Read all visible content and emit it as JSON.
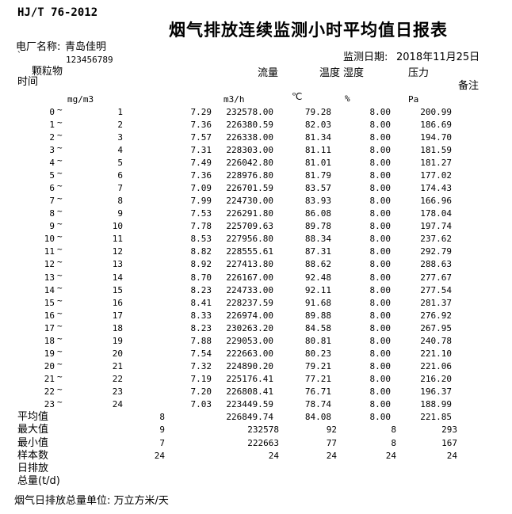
{
  "header": {
    "standard": "HJ/T 76-2012",
    "title": "烟气排放连续监测小时平均值日报表",
    "plant_label": "电厂名称:",
    "plant_name": "青岛佳明",
    "stray_mark": "`",
    "serial": "123456789",
    "date_label": "监测日期:",
    "date_value": "2018年11月25日"
  },
  "columns": {
    "time": "时间",
    "dust": "颗粒物",
    "flow": "流量",
    "temp": "温度",
    "humidity": "湿度",
    "pressure": "压力",
    "remark": "备注"
  },
  "units": {
    "dust": "mg/m3",
    "flow": "m3/h",
    "temp": "℃",
    "humidity": "%",
    "pressure": "Pa"
  },
  "tilde": "~",
  "rows": [
    {
      "start": "0",
      "end": "1",
      "dust": "7.29",
      "flow": "232578.00",
      "temp": "79.28",
      "humidity": "8.00",
      "pressure": "200.99"
    },
    {
      "start": "1",
      "end": "2",
      "dust": "7.36",
      "flow": "226380.59",
      "temp": "82.03",
      "humidity": "8.00",
      "pressure": "186.69"
    },
    {
      "start": "2",
      "end": "3",
      "dust": "7.57",
      "flow": "226338.00",
      "temp": "81.34",
      "humidity": "8.00",
      "pressure": "194.70"
    },
    {
      "start": "3",
      "end": "4",
      "dust": "7.31",
      "flow": "228303.00",
      "temp": "81.11",
      "humidity": "8.00",
      "pressure": "181.59"
    },
    {
      "start": "4",
      "end": "5",
      "dust": "7.49",
      "flow": "226042.80",
      "temp": "81.01",
      "humidity": "8.00",
      "pressure": "181.27"
    },
    {
      "start": "5",
      "end": "6",
      "dust": "7.36",
      "flow": "228976.80",
      "temp": "81.79",
      "humidity": "8.00",
      "pressure": "177.02"
    },
    {
      "start": "6",
      "end": "7",
      "dust": "7.09",
      "flow": "226701.59",
      "temp": "83.57",
      "humidity": "8.00",
      "pressure": "174.43"
    },
    {
      "start": "7",
      "end": "8",
      "dust": "7.99",
      "flow": "224730.00",
      "temp": "83.93",
      "humidity": "8.00",
      "pressure": "166.96"
    },
    {
      "start": "8",
      "end": "9",
      "dust": "7.53",
      "flow": "226291.80",
      "temp": "86.08",
      "humidity": "8.00",
      "pressure": "178.04"
    },
    {
      "start": "9",
      "end": "10",
      "dust": "7.78",
      "flow": "225709.63",
      "temp": "89.78",
      "humidity": "8.00",
      "pressure": "197.74"
    },
    {
      "start": "10",
      "end": "11",
      "dust": "8.53",
      "flow": "227956.80",
      "temp": "88.34",
      "humidity": "8.00",
      "pressure": "237.62"
    },
    {
      "start": "11",
      "end": "12",
      "dust": "8.82",
      "flow": "228555.61",
      "temp": "87.31",
      "humidity": "8.00",
      "pressure": "292.79"
    },
    {
      "start": "12",
      "end": "13",
      "dust": "8.92",
      "flow": "227413.80",
      "temp": "88.62",
      "humidity": "8.00",
      "pressure": "288.63"
    },
    {
      "start": "13",
      "end": "14",
      "dust": "8.70",
      "flow": "226167.00",
      "temp": "92.48",
      "humidity": "8.00",
      "pressure": "277.67"
    },
    {
      "start": "14",
      "end": "15",
      "dust": "8.23",
      "flow": "224733.00",
      "temp": "92.11",
      "humidity": "8.00",
      "pressure": "277.54"
    },
    {
      "start": "15",
      "end": "16",
      "dust": "8.41",
      "flow": "228237.59",
      "temp": "91.68",
      "humidity": "8.00",
      "pressure": "281.37"
    },
    {
      "start": "16",
      "end": "17",
      "dust": "8.33",
      "flow": "226974.00",
      "temp": "89.88",
      "humidity": "8.00",
      "pressure": "276.92"
    },
    {
      "start": "17",
      "end": "18",
      "dust": "8.23",
      "flow": "230263.20",
      "temp": "84.58",
      "humidity": "8.00",
      "pressure": "267.95"
    },
    {
      "start": "18",
      "end": "19",
      "dust": "7.88",
      "flow": "229053.00",
      "temp": "80.81",
      "humidity": "8.00",
      "pressure": "240.78"
    },
    {
      "start": "19",
      "end": "20",
      "dust": "7.54",
      "flow": "222663.00",
      "temp": "80.23",
      "humidity": "8.00",
      "pressure": "221.10"
    },
    {
      "start": "20",
      "end": "21",
      "dust": "7.32",
      "flow": "224890.20",
      "temp": "79.21",
      "humidity": "8.00",
      "pressure": "221.06"
    },
    {
      "start": "21",
      "end": "22",
      "dust": "7.19",
      "flow": "225176.41",
      "temp": "77.21",
      "humidity": "8.00",
      "pressure": "216.20"
    },
    {
      "start": "22",
      "end": "23",
      "dust": "7.20",
      "flow": "226808.41",
      "temp": "76.71",
      "humidity": "8.00",
      "pressure": "196.37"
    },
    {
      "start": "23",
      "end": "24",
      "dust": "7.03",
      "flow": "223449.59",
      "temp": "78.74",
      "humidity": "8.00",
      "pressure": "188.99"
    }
  ],
  "summary": [
    {
      "label": "平均值",
      "dust": "8",
      "flow": "226849.74",
      "temp": "84.08",
      "humidity": "8.00",
      "pressure": "221.85"
    },
    {
      "label": "最大值",
      "dust": "9",
      "flow": "232578",
      "temp": "92",
      "humidity": "8",
      "pressure": "293"
    },
    {
      "label": "最小值",
      "dust": "7",
      "flow": "222663",
      "temp": "77",
      "humidity": "8",
      "pressure": "167"
    },
    {
      "label": "样本数",
      "dust": "24",
      "flow": "24",
      "temp": "24",
      "humidity": "24",
      "pressure": "24"
    }
  ],
  "extra_rows": [
    "日排放",
    "总量(t/d)"
  ],
  "footer": {
    "note": "烟气日排放总量单位: 万立方米/天"
  }
}
